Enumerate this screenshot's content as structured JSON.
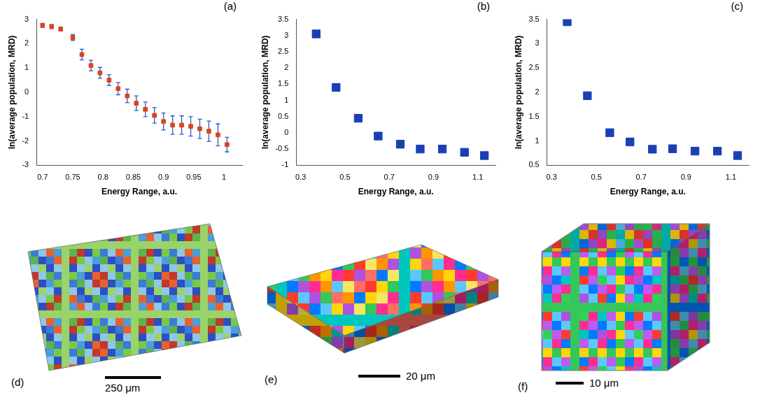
{
  "chart_data": [
    {
      "type": "scatter",
      "title": "(a)",
      "x_label": "Energy Range, a.u.",
      "y_label": "ln(average population, MRD)",
      "x": [
        0.7,
        0.715,
        0.73,
        0.75,
        0.765,
        0.78,
        0.795,
        0.81,
        0.825,
        0.84,
        0.855,
        0.87,
        0.885,
        0.9,
        0.915,
        0.93,
        0.945,
        0.96,
        0.975,
        0.99,
        1.005
      ],
      "values": [
        2.75,
        2.7,
        2.6,
        2.25,
        1.55,
        1.1,
        0.8,
        0.5,
        0.15,
        -0.15,
        -0.45,
        -0.7,
        -0.95,
        -1.2,
        -1.35,
        -1.35,
        -1.4,
        -1.5,
        -1.6,
        -1.75,
        -2.15
      ],
      "errors": [
        0.08,
        0.08,
        0.08,
        0.12,
        0.22,
        0.22,
        0.22,
        0.22,
        0.25,
        0.28,
        0.3,
        0.3,
        0.32,
        0.35,
        0.38,
        0.38,
        0.4,
        0.4,
        0.42,
        0.45,
        0.3
      ],
      "color": "#d9441c",
      "marker": "square",
      "xlim": [
        0.69,
        1.03
      ],
      "xticks": [
        0.7,
        0.75,
        0.8,
        0.85,
        0.9,
        0.95,
        1
      ],
      "ylim": [
        -3,
        3
      ],
      "yticks": [
        -3,
        -2,
        -1,
        0,
        1,
        2,
        3
      ],
      "grid": false
    },
    {
      "type": "scatter",
      "title": "(b)",
      "x_label": "Energy Range, a.u.",
      "y_label": "ln(average population, MRD)",
      "x": [
        0.37,
        0.46,
        0.56,
        0.65,
        0.75,
        0.84,
        0.94,
        1.04,
        1.13
      ],
      "values": [
        3.05,
        1.4,
        0.45,
        -0.1,
        -0.35,
        -0.5,
        -0.5,
        -0.6,
        -0.7
      ],
      "color": "#1a3fb5",
      "marker": "square",
      "xlim": [
        0.28,
        1.18
      ],
      "xticks": [
        0.3,
        0.5,
        0.7,
        0.9,
        1.1
      ],
      "ylim": [
        -1,
        3.5
      ],
      "yticks": [
        -1,
        -0.5,
        0,
        0.5,
        1,
        1.5,
        2,
        2.5,
        3,
        3.5
      ],
      "grid": false
    },
    {
      "type": "scatter",
      "title": "(c)",
      "x_label": "Energy Range, a.u.",
      "y_label": "ln(average population, MRD)",
      "x": [
        0.37,
        0.46,
        0.56,
        0.65,
        0.75,
        0.84,
        0.94,
        1.04,
        1.13
      ],
      "values": [
        3.45,
        1.93,
        1.17,
        0.98,
        0.83,
        0.84,
        0.79,
        0.79,
        0.7
      ],
      "color": "#1a3fb5",
      "marker": "square",
      "xlim": [
        0.28,
        1.18
      ],
      "xticks": [
        0.3,
        0.5,
        0.7,
        0.9,
        1.1
      ],
      "ylim": [
        0.5,
        3.5
      ],
      "yticks": [
        0.5,
        1,
        1.5,
        2,
        2.5,
        3,
        3.5
      ],
      "grid": false
    }
  ],
  "images": [
    {
      "label": "(d)",
      "scale_bar": "250 μm"
    },
    {
      "label": "(e)",
      "scale_bar": "20 μm"
    },
    {
      "label": "(f)",
      "scale_bar": "10 μm"
    }
  ]
}
